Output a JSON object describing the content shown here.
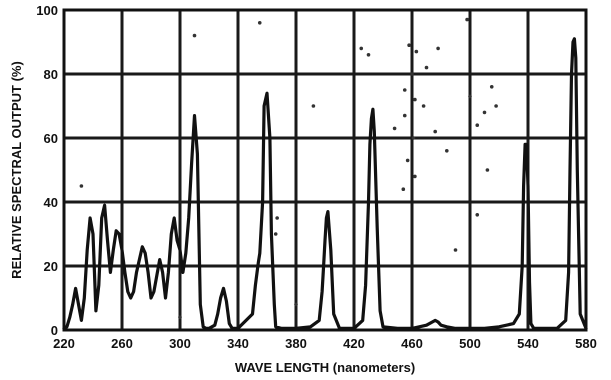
{
  "chart_data": {
    "type": "line",
    "title": "",
    "xlabel": "WAVE LENGTH (nanometers)",
    "ylabel": "RELATIVE SPECTRAL OUTPUT (%)",
    "xlim": [
      220,
      580
    ],
    "ylim": [
      0,
      100
    ],
    "x_ticks": [
      220,
      260,
      300,
      340,
      380,
      420,
      460,
      500,
      540,
      580
    ],
    "x_tick_labels": [
      "220",
      "260",
      "300",
      "340",
      "380",
      "420",
      "460",
      "500",
      "540",
      "580"
    ],
    "y_ticks": [
      0,
      20,
      40,
      60,
      80,
      100
    ],
    "y_tick_labels": [
      "0",
      "20",
      "40",
      "60",
      "80",
      "100"
    ],
    "grid": true,
    "legend": "none",
    "series": [
      {
        "x": [
          220,
          222,
          224,
          226,
          228,
          230,
          232,
          234,
          236,
          238,
          240,
          242,
          244,
          246,
          248,
          250,
          252,
          254,
          256,
          258,
          260,
          262,
          264,
          266,
          268,
          270,
          272,
          274,
          276,
          278,
          280,
          282,
          284,
          286,
          288,
          290,
          292,
          294,
          296,
          298,
          300,
          302,
          304,
          306,
          308,
          310,
          312,
          314,
          316,
          318,
          320,
          324,
          326,
          328,
          330,
          332,
          334,
          336,
          340,
          350,
          352,
          354,
          355,
          357,
          358,
          360,
          362,
          363,
          365,
          366,
          370,
          380,
          390,
          396,
          398,
          399,
          400,
          401,
          402,
          404,
          406,
          410,
          420,
          426,
          428,
          430,
          431,
          432,
          433,
          434,
          436,
          438,
          440,
          450,
          460,
          470,
          474,
          476,
          478,
          480,
          484,
          490,
          500,
          510,
          520,
          530,
          534,
          536,
          537,
          538,
          539,
          540,
          541,
          542,
          544,
          550,
          560,
          566,
          568,
          569,
          570,
          571,
          572,
          573,
          574,
          576,
          580
        ],
        "y": [
          0.5,
          1,
          4,
          8,
          13,
          8,
          3,
          10,
          25,
          35,
          30,
          6,
          14,
          35,
          39,
          28,
          18,
          25,
          31,
          30,
          25,
          18,
          12,
          10,
          12,
          18,
          22,
          26,
          24,
          18,
          10,
          12,
          17,
          22,
          18,
          10,
          18,
          30,
          35,
          28,
          25,
          18,
          24,
          35,
          52,
          67,
          55,
          8,
          1,
          0.5,
          0.5,
          1.5,
          5,
          10,
          13,
          9,
          2,
          0.5,
          0.5,
          5,
          14,
          21,
          24,
          40,
          70,
          74,
          60,
          30,
          8,
          1,
          0.5,
          0.5,
          1,
          3,
          12,
          20,
          28,
          35,
          37,
          25,
          5,
          0.5,
          0.5,
          3,
          14,
          40,
          58,
          66,
          69,
          62,
          32,
          6,
          1,
          0.5,
          0.5,
          1.5,
          2.5,
          3,
          2.5,
          1.5,
          1,
          0.5,
          0.5,
          0.5,
          1,
          2,
          5,
          20,
          45,
          58,
          58,
          45,
          15,
          2,
          0.5,
          0.5,
          0.5,
          3,
          18,
          50,
          80,
          90,
          91,
          85,
          50,
          5,
          0.5
        ]
      }
    ]
  },
  "decoration": {
    "specks": [
      [
        310,
        92
      ],
      [
        232,
        45
      ],
      [
        355,
        96
      ],
      [
        367,
        35
      ],
      [
        425,
        88
      ],
      [
        430,
        86
      ],
      [
        458,
        89
      ],
      [
        463,
        87
      ],
      [
        460,
        80
      ],
      [
        470,
        82
      ],
      [
        455,
        75
      ],
      [
        462,
        72
      ],
      [
        468,
        70
      ],
      [
        455,
        67
      ],
      [
        448,
        63
      ],
      [
        500,
        73
      ],
      [
        510,
        68
      ],
      [
        505,
        64
      ],
      [
        515,
        76
      ],
      [
        476,
        62
      ],
      [
        461,
        60
      ],
      [
        457,
        53
      ],
      [
        462,
        48
      ],
      [
        484,
        56
      ],
      [
        490,
        25
      ],
      [
        505,
        36
      ],
      [
        454,
        44
      ],
      [
        498,
        97
      ],
      [
        512,
        50
      ],
      [
        518,
        70
      ],
      [
        392,
        70
      ],
      [
        478,
        88
      ],
      [
        380,
        8
      ],
      [
        366,
        30
      ],
      [
        300,
        4
      ]
    ]
  }
}
